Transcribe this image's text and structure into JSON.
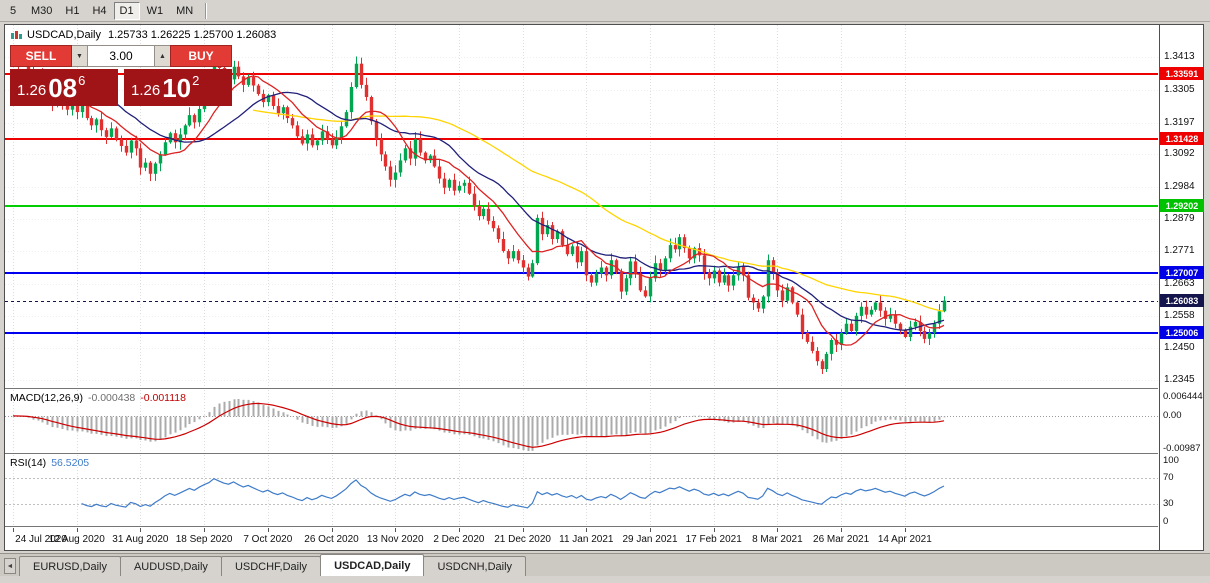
{
  "toolbar": {
    "timeframes": [
      {
        "label": "5",
        "active": false
      },
      {
        "label": "M30",
        "active": false
      },
      {
        "label": "H1",
        "active": false
      },
      {
        "label": "H4",
        "active": false
      },
      {
        "label": "D1",
        "active": true
      },
      {
        "label": "W1",
        "active": false
      },
      {
        "label": "MN",
        "active": false
      }
    ]
  },
  "chart": {
    "symbol_text": "USDCAD,Daily",
    "ohlc_text": "1.25733 1.26225 1.25700 1.26083"
  },
  "trade_panel": {
    "sell_label": "SELL",
    "buy_label": "BUY",
    "lot": "3.00",
    "spin_down_icon": "▼",
    "spin_up_icon": "▲",
    "bid": {
      "prefix": "1.26",
      "big": "08",
      "sup": "6"
    },
    "ask": {
      "prefix": "1.26",
      "big": "10",
      "sup": "2"
    }
  },
  "price_axis": {
    "ticks": [
      "1.3413",
      "1.3305",
      "1.3197",
      "1.3092",
      "1.2984",
      "1.2879",
      "1.2771",
      "1.2663",
      "1.2558",
      "1.2450",
      "1.2345"
    ],
    "badges": [
      {
        "label": "1.33591",
        "price": 1.33591,
        "bg": "#ee0000"
      },
      {
        "label": "1.31428",
        "price": 1.31428,
        "bg": "#ee0000"
      },
      {
        "label": "1.29202",
        "price": 1.29202,
        "bg": "#00c200"
      },
      {
        "label": "1.27007",
        "price": 1.27007,
        "bg": "#0000e6"
      },
      {
        "label": "1.26083",
        "price": 1.26083,
        "bg": "#15154e"
      },
      {
        "label": "1.25006",
        "price": 1.25006,
        "bg": "#0000e6"
      }
    ]
  },
  "time_axis": {
    "labels": [
      "24 Jul 2020",
      "12 Aug 2020",
      "31 Aug 2020",
      "18 Sep 2020",
      "7 Oct 2020",
      "26 Oct 2020",
      "13 Nov 2020",
      "2 Dec 2020",
      "21 Dec 2020",
      "11 Jan 2021",
      "29 Jan 2021",
      "17 Feb 2021",
      "8 Mar 2021",
      "26 Mar 2021",
      "14 Apr 2021"
    ]
  },
  "macd_panel": {
    "label": "MACD(12,26,9)",
    "value_main": "-0.000438",
    "value_signal": "-0.001118",
    "axis_labels": [
      "0.006444",
      "0.00",
      "-0.00987"
    ]
  },
  "rsi_panel": {
    "label": "RSI(14)",
    "value": "56.5205",
    "axis_labels": [
      "100",
      "70",
      "30",
      "0"
    ]
  },
  "tabs": {
    "items": [
      {
        "label": "EURUSD,Daily",
        "active": false
      },
      {
        "label": "AUDUSD,Daily",
        "active": false
      },
      {
        "label": "USDCHF,Daily",
        "active": false
      },
      {
        "label": "USDCAD,Daily",
        "active": true
      },
      {
        "label": "USDCNH,Daily",
        "active": false
      }
    ]
  },
  "chart_data": {
    "type": "candlestick",
    "symbol": "USDCAD",
    "timeframe": "Daily",
    "ohlc_current": {
      "open": 1.25733,
      "high": 1.26225,
      "low": 1.257,
      "close": 1.26083
    },
    "ylim": [
      1.2316,
      1.352
    ],
    "candles_per_tick": 13,
    "up_color": "#00a650",
    "down_color": "#e03030",
    "closes": [
      1.3415,
      1.3398,
      1.341,
      1.3365,
      1.333,
      1.3352,
      1.331,
      1.3275,
      1.3255,
      1.329,
      1.3262,
      1.324,
      1.3268,
      1.3232,
      1.3258,
      1.3212,
      1.3188,
      1.3208,
      1.3172,
      1.315,
      1.3178,
      1.3142,
      1.312,
      1.3098,
      1.3138,
      1.3112,
      1.3048,
      1.3065,
      1.3028,
      1.3062,
      1.3092,
      1.3132,
      1.3162,
      1.3132,
      1.3158,
      1.3188,
      1.3222,
      1.3198,
      1.3242,
      1.3282,
      1.3318,
      1.3402,
      1.3378,
      1.3352,
      1.334,
      1.3382,
      1.335,
      1.3322,
      1.3348,
      1.332,
      1.3292,
      1.3265,
      1.3288,
      1.3252,
      1.3228,
      1.3248,
      1.3212,
      1.3188,
      1.3152,
      1.3128,
      1.3158,
      1.3122,
      1.3138,
      1.3168,
      1.3142,
      1.3122,
      1.3148,
      1.3185,
      1.3232,
      1.3315,
      1.3392,
      1.3322,
      1.3282,
      1.3202,
      1.3142,
      1.3092,
      1.3052,
      1.3008,
      1.3032,
      1.3072,
      1.3112,
      1.3078,
      1.3142,
      1.3098,
      1.3072,
      1.3088,
      1.3052,
      1.3012,
      1.2982,
      1.3008,
      1.2972,
      1.2988,
      1.2998,
      1.2962,
      1.2922,
      1.2888,
      1.2912,
      1.2872,
      1.2848,
      1.2812,
      1.2772,
      1.2748,
      1.2772,
      1.2742,
      1.2718,
      1.2688,
      1.2732,
      1.2882,
      1.2828,
      1.2858,
      1.2812,
      1.2838,
      1.2792,
      1.2762,
      1.2788,
      1.2735,
      1.2772,
      1.2692,
      1.2668,
      1.2698,
      1.2718,
      1.2692,
      1.2742,
      1.2702,
      1.2638,
      1.2682,
      1.2738,
      1.2698,
      1.2642,
      1.2622,
      1.2682,
      1.2732,
      1.2708,
      1.2748,
      1.2792,
      1.2778,
      1.2818,
      1.2782,
      1.2748,
      1.2782,
      1.2758,
      1.2702,
      1.2682,
      1.2708,
      1.2668,
      1.2692,
      1.2658,
      1.2692,
      1.2722,
      1.2692,
      1.2618,
      1.2602,
      1.2582,
      1.2622,
      1.2742,
      1.2702,
      1.2642,
      1.2608,
      1.2652,
      1.2602,
      1.2562,
      1.2502,
      1.2472,
      1.2442,
      1.2408,
      1.2382,
      1.2432,
      1.2478,
      1.2462,
      1.2502,
      1.2532,
      1.2508,
      1.2558,
      1.2588,
      1.2562,
      1.2578,
      1.2602,
      1.2575,
      1.2548,
      1.2562,
      1.2532,
      1.2512,
      1.2488,
      1.2522,
      1.2538,
      1.2508,
      1.2482,
      1.2502,
      1.2532,
      1.2573,
      1.26083
    ],
    "moving_averages": [
      {
        "period": 50,
        "color": "#ffd400"
      },
      {
        "period": 21,
        "color": "#20207a"
      },
      {
        "period": 10,
        "color": "#dd2222"
      }
    ],
    "hlines": [
      {
        "price": 1.33591,
        "color": "#ee0000"
      },
      {
        "price": 1.31428,
        "color": "#ee0000"
      },
      {
        "price": 1.29202,
        "color": "#00ce00"
      },
      {
        "price": 1.27007,
        "color": "#0000ee"
      },
      {
        "price": 1.25006,
        "color": "#0000ee"
      }
    ],
    "current_price": 1.26083,
    "current_price_color": "#15154e",
    "indicators": [
      {
        "type": "MACD",
        "params": [
          12,
          26,
          9
        ],
        "values": [
          -0.000438,
          -0.001118
        ],
        "ylim": [
          -0.00987,
          0.006444
        ],
        "bar_color": "#ababab",
        "signal_color": "#cc0000"
      },
      {
        "type": "RSI",
        "params": [
          14
        ],
        "value": 56.5205,
        "ylim": [
          0,
          100
        ],
        "levels": [
          30,
          70
        ],
        "line_color": "#3f7cc9"
      }
    ]
  }
}
